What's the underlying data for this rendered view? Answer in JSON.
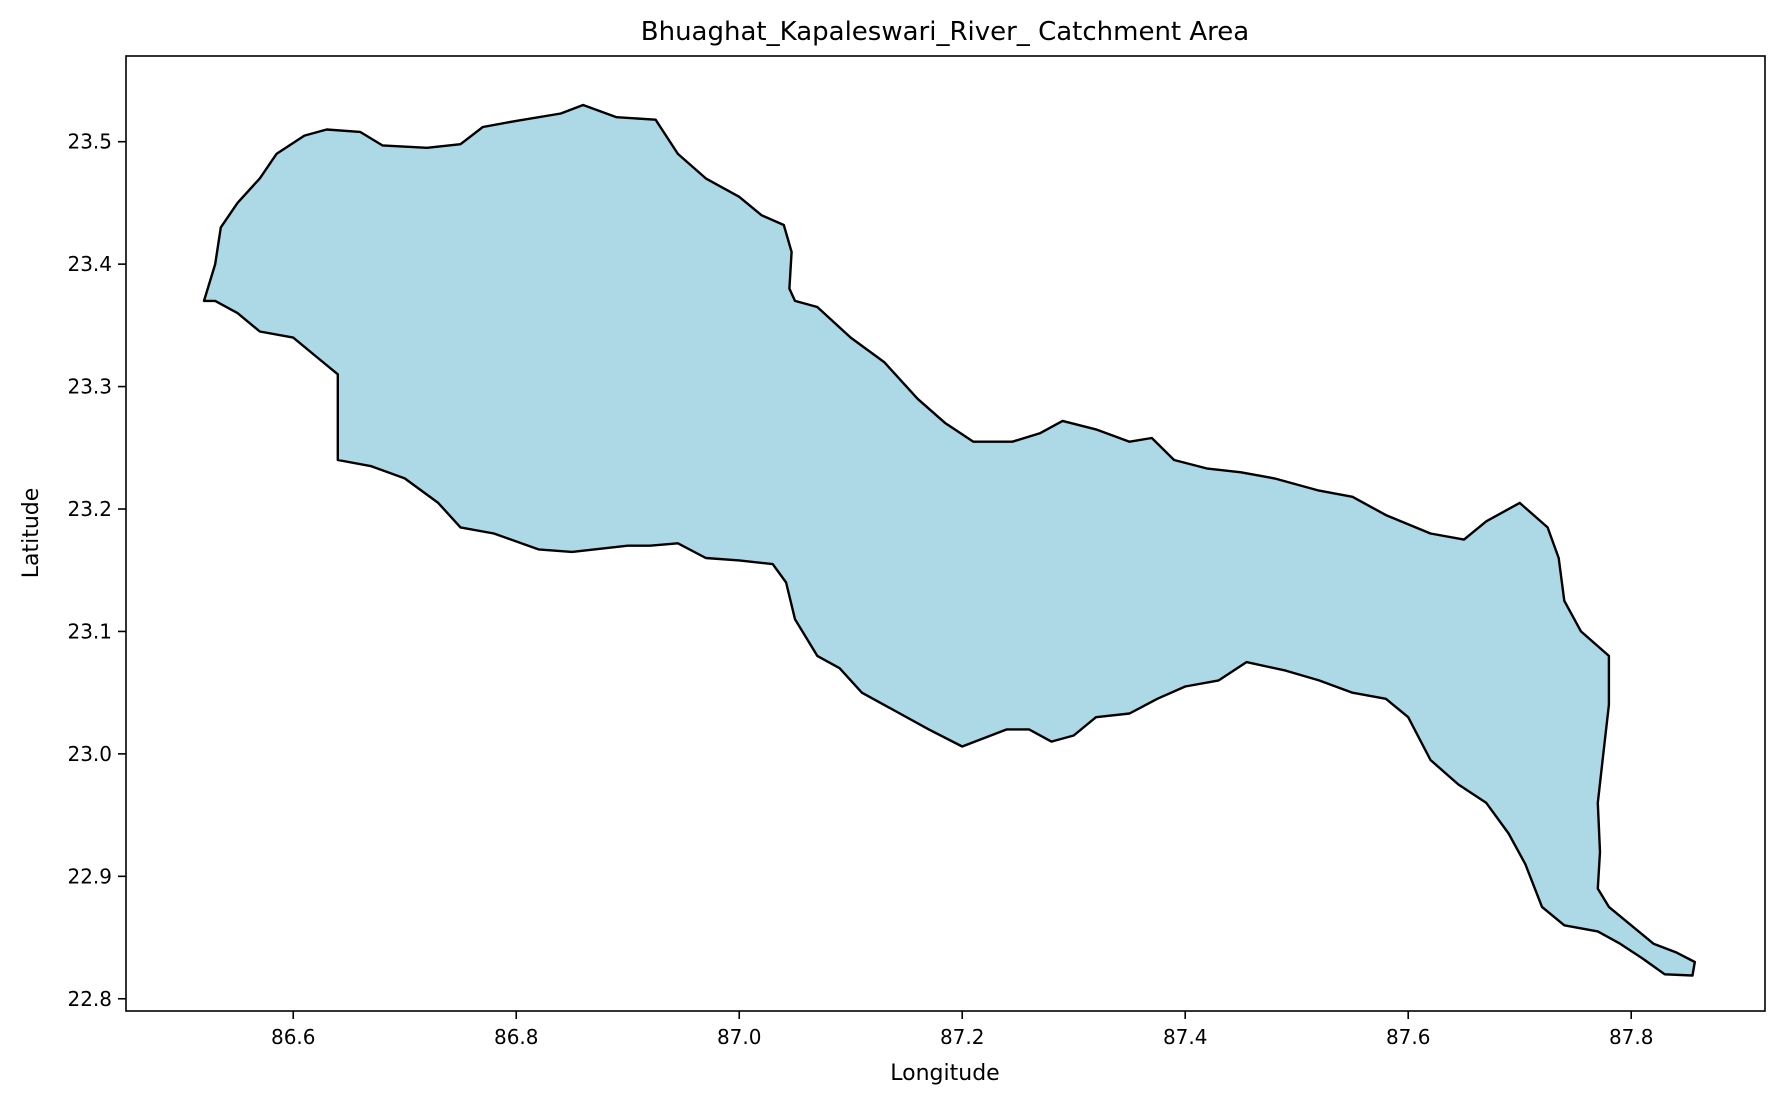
{
  "chart_data": {
    "type": "map",
    "title": "Bhuaghat_Kapaleswari_River_ Catchment Area",
    "xlabel": "Longitude",
    "ylabel": "Latitude",
    "xlim": [
      86.45,
      87.92
    ],
    "ylim": [
      22.79,
      23.57
    ],
    "xticks": [
      86.6,
      86.8,
      87.0,
      87.2,
      87.4,
      87.6,
      87.8
    ],
    "xtick_labels": [
      "86.6",
      "86.8",
      "87.0",
      "87.2",
      "87.4",
      "87.6",
      "87.8"
    ],
    "yticks": [
      22.8,
      22.9,
      23.0,
      23.1,
      23.2,
      23.3,
      23.4,
      23.5
    ],
    "ytick_labels": [
      "22.8",
      "22.9",
      "23.0",
      "23.1",
      "23.2",
      "23.3",
      "23.4",
      "23.5"
    ],
    "fill_color": "#add8e6",
    "edge_color": "#000000",
    "grid": false,
    "boundary": [
      [
        86.52,
        23.37
      ],
      [
        86.53,
        23.4
      ],
      [
        86.535,
        23.43
      ],
      [
        86.55,
        23.45
      ],
      [
        86.57,
        23.47
      ],
      [
        86.585,
        23.49
      ],
      [
        86.61,
        23.505
      ],
      [
        86.63,
        23.51
      ],
      [
        86.66,
        23.508
      ],
      [
        86.68,
        23.497
      ],
      [
        86.72,
        23.495
      ],
      [
        86.75,
        23.498
      ],
      [
        86.77,
        23.512
      ],
      [
        86.8,
        23.517
      ],
      [
        86.84,
        23.523
      ],
      [
        86.86,
        23.53
      ],
      [
        86.89,
        23.52
      ],
      [
        86.925,
        23.518
      ],
      [
        86.945,
        23.49
      ],
      [
        86.97,
        23.47
      ],
      [
        87.0,
        23.455
      ],
      [
        87.02,
        23.44
      ],
      [
        87.04,
        23.432
      ],
      [
        87.047,
        23.41
      ],
      [
        87.045,
        23.38
      ],
      [
        87.05,
        23.37
      ],
      [
        87.07,
        23.365
      ],
      [
        87.1,
        23.34
      ],
      [
        87.13,
        23.32
      ],
      [
        87.16,
        23.29
      ],
      [
        87.185,
        23.27
      ],
      [
        87.21,
        23.255
      ],
      [
        87.245,
        23.255
      ],
      [
        87.27,
        23.262
      ],
      [
        87.29,
        23.272
      ],
      [
        87.32,
        23.265
      ],
      [
        87.35,
        23.255
      ],
      [
        87.37,
        23.258
      ],
      [
        87.39,
        23.24
      ],
      [
        87.42,
        23.233
      ],
      [
        87.45,
        23.23
      ],
      [
        87.48,
        23.225
      ],
      [
        87.52,
        23.215
      ],
      [
        87.55,
        23.21
      ],
      [
        87.58,
        23.195
      ],
      [
        87.62,
        23.18
      ],
      [
        87.65,
        23.175
      ],
      [
        87.67,
        23.19
      ],
      [
        87.7,
        23.205
      ],
      [
        87.725,
        23.185
      ],
      [
        87.735,
        23.16
      ],
      [
        87.74,
        23.125
      ],
      [
        87.755,
        23.1
      ],
      [
        87.78,
        23.08
      ],
      [
        87.78,
        23.04
      ],
      [
        87.775,
        23.0
      ],
      [
        87.77,
        22.96
      ],
      [
        87.772,
        22.92
      ],
      [
        87.77,
        22.89
      ],
      [
        87.78,
        22.875
      ],
      [
        87.8,
        22.86
      ],
      [
        87.82,
        22.845
      ],
      [
        87.84,
        22.838
      ],
      [
        87.857,
        22.83
      ],
      [
        87.855,
        22.819
      ],
      [
        87.83,
        22.82
      ],
      [
        87.81,
        22.833
      ],
      [
        87.79,
        22.845
      ],
      [
        87.77,
        22.855
      ],
      [
        87.74,
        22.86
      ],
      [
        87.72,
        22.875
      ],
      [
        87.705,
        22.91
      ],
      [
        87.69,
        22.935
      ],
      [
        87.67,
        22.96
      ],
      [
        87.645,
        22.975
      ],
      [
        87.62,
        22.995
      ],
      [
        87.6,
        23.03
      ],
      [
        87.58,
        23.045
      ],
      [
        87.55,
        23.05
      ],
      [
        87.52,
        23.06
      ],
      [
        87.49,
        23.068
      ],
      [
        87.455,
        23.075
      ],
      [
        87.43,
        23.06
      ],
      [
        87.4,
        23.055
      ],
      [
        87.375,
        23.045
      ],
      [
        87.35,
        23.033
      ],
      [
        87.32,
        23.03
      ],
      [
        87.3,
        23.015
      ],
      [
        87.28,
        23.01
      ],
      [
        87.26,
        23.02
      ],
      [
        87.24,
        23.02
      ],
      [
        87.2,
        23.006
      ],
      [
        87.17,
        23.02
      ],
      [
        87.14,
        23.035
      ],
      [
        87.11,
        23.05
      ],
      [
        87.09,
        23.07
      ],
      [
        87.07,
        23.08
      ],
      [
        87.05,
        23.11
      ],
      [
        87.042,
        23.14
      ],
      [
        87.03,
        23.155
      ],
      [
        87.0,
        23.158
      ],
      [
        86.97,
        23.16
      ],
      [
        86.945,
        23.172
      ],
      [
        86.92,
        23.17
      ],
      [
        86.9,
        23.17
      ],
      [
        86.88,
        23.168
      ],
      [
        86.85,
        23.165
      ],
      [
        86.82,
        23.167
      ],
      [
        86.78,
        23.18
      ],
      [
        86.75,
        23.185
      ],
      [
        86.73,
        23.205
      ],
      [
        86.7,
        23.225
      ],
      [
        86.67,
        23.235
      ],
      [
        86.64,
        23.24
      ],
      [
        86.64,
        23.27
      ],
      [
        86.64,
        23.31
      ],
      [
        86.62,
        23.325
      ],
      [
        86.6,
        23.34
      ],
      [
        86.57,
        23.345
      ],
      [
        86.55,
        23.36
      ],
      [
        86.53,
        23.37
      ]
    ]
  }
}
